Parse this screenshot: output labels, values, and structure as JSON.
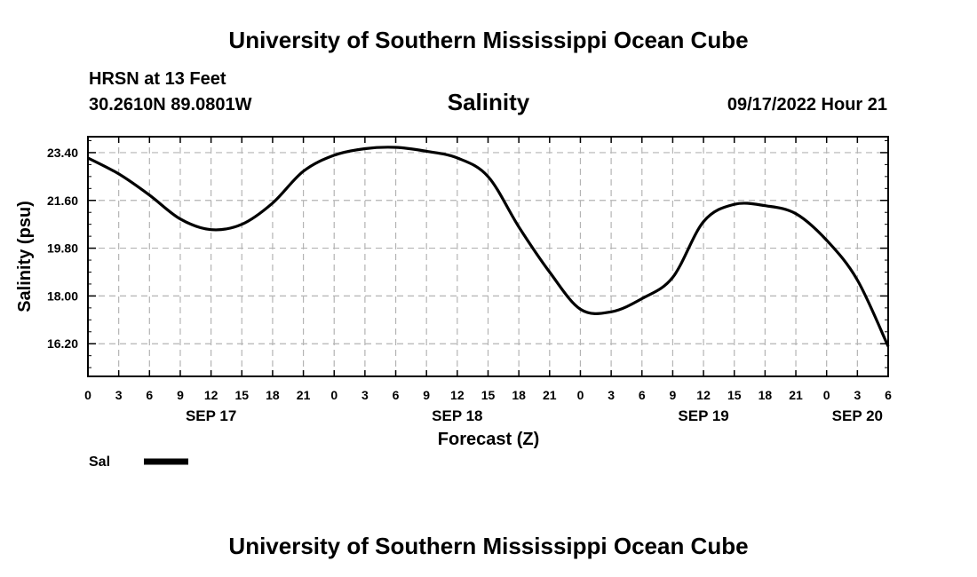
{
  "header": {
    "title": "University of Southern Mississippi Ocean Cube",
    "station": "HRSN at 13 Feet",
    "coords": "30.2610N  89.0801W",
    "subtitle": "Salinity",
    "datetime": "09/17/2022 Hour 21"
  },
  "footer": {
    "title": "University of Southern Mississippi Ocean Cube"
  },
  "chart_data": {
    "type": "line",
    "title": "Salinity",
    "xlabel": "Forecast (Z)",
    "ylabel": "Salinity (psu)",
    "ylim": [
      14.97,
      24.0
    ],
    "yticks": [
      16.2,
      18.0,
      19.8,
      21.6,
      23.4
    ],
    "ytick_labels": [
      "16.20",
      "18.00",
      "19.80",
      "21.60",
      "23.40"
    ],
    "xlim": [
      0,
      78
    ],
    "xticks": [
      0,
      3,
      6,
      9,
      12,
      15,
      18,
      21,
      24,
      27,
      30,
      33,
      36,
      39,
      42,
      45,
      48,
      51,
      54,
      57,
      60,
      63,
      66,
      69,
      72,
      75,
      78
    ],
    "xtick_labels": [
      "0",
      "3",
      "6",
      "9",
      "12",
      "15",
      "18",
      "21",
      "0",
      "3",
      "6",
      "9",
      "12",
      "15",
      "18",
      "21",
      "0",
      "3",
      "6",
      "9",
      "12",
      "15",
      "18",
      "21",
      "0",
      "3",
      "6"
    ],
    "date_labels": [
      {
        "hour": 12,
        "label": "SEP 17"
      },
      {
        "hour": 36,
        "label": "SEP 18"
      },
      {
        "hour": 60,
        "label": "SEP 19"
      },
      {
        "hour": 75,
        "label": "SEP 20"
      }
    ],
    "grid": true,
    "legend": "bottom-left",
    "series": [
      {
        "name": "Sal",
        "color": "#000000",
        "x": [
          0,
          3,
          6,
          9,
          12,
          15,
          18,
          21,
          24,
          27,
          30,
          33,
          36,
          39,
          42,
          45,
          48,
          51,
          54,
          57,
          60,
          63,
          66,
          69,
          72,
          75,
          78
        ],
        "y": [
          23.2,
          22.6,
          21.8,
          20.9,
          20.5,
          20.7,
          21.5,
          22.7,
          23.3,
          23.55,
          23.6,
          23.45,
          23.2,
          22.5,
          20.6,
          18.9,
          17.5,
          17.4,
          17.9,
          18.7,
          20.8,
          21.45,
          21.4,
          21.1,
          20.1,
          18.6,
          16.1
        ]
      }
    ]
  }
}
